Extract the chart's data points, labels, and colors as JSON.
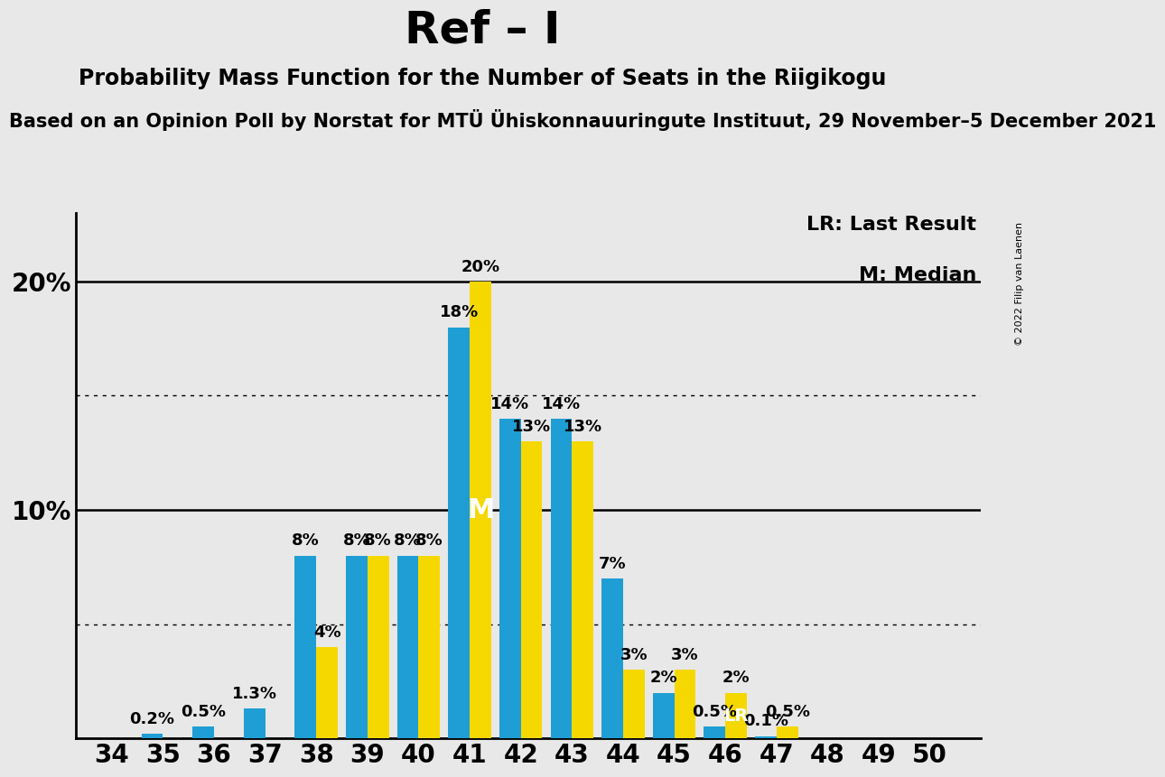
{
  "title": "Ref – I",
  "subtitle": "Probability Mass Function for the Number of Seats in the Riigikogu",
  "subtitle2": "Based on an Opinion Poll by Norstat for MTÜ Ühiskonnauuringute Instituut, 29 November–5 December 2021",
  "copyright": "© 2022 Filip van Laenen",
  "seats": [
    34,
    35,
    36,
    37,
    38,
    39,
    40,
    41,
    42,
    43,
    44,
    45,
    46,
    47,
    48,
    49,
    50
  ],
  "blue_values": [
    0.0,
    0.2,
    0.5,
    1.3,
    8.0,
    8.0,
    8.0,
    18.0,
    14.0,
    14.0,
    7.0,
    2.0,
    0.5,
    0.1,
    0.0,
    0.0,
    0.0
  ],
  "yellow_values": [
    0.0,
    0.0,
    0.0,
    0.0,
    4.0,
    8.0,
    8.0,
    20.0,
    13.0,
    13.0,
    3.0,
    3.0,
    2.0,
    0.5,
    0.0,
    0.0,
    0.0
  ],
  "blue_color": "#1E9ED4",
  "yellow_color": "#F5D800",
  "bg_color": "#E8E8E8",
  "median_seat": 41,
  "lr_seat": 46,
  "dotted_lines": [
    5.0,
    15.0
  ],
  "solid_lines": [
    10.0,
    20.0
  ],
  "bar_width": 0.42,
  "title_fontsize": 36,
  "subtitle_fontsize": 17,
  "subtitle2_fontsize": 15,
  "tick_fontsize": 20,
  "legend_fontsize": 16,
  "annotation_fontsize": 13
}
